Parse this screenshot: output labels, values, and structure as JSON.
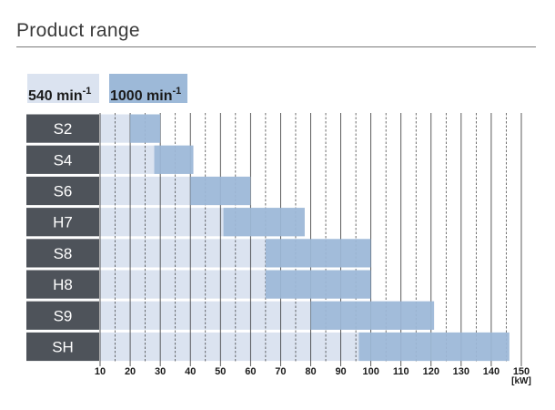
{
  "title": "Product range",
  "colors": {
    "label_bg": "#4e535a",
    "bar_540": "#dbe3f0",
    "bar_1000": "#9db9d8",
    "grid": "#333333"
  },
  "legend": [
    {
      "label": "540 min",
      "sup": "-1",
      "color": "#dbe3f0"
    },
    {
      "label": "1000 min",
      "sup": "-1",
      "color": "#9db9d8"
    }
  ],
  "chart_data": {
    "type": "bar",
    "orientation": "horizontal",
    "title": "Product range",
    "xlabel": "[kW]",
    "xlim": [
      10,
      150
    ],
    "x_ticks": [
      "10",
      "20",
      "30",
      "40",
      "50",
      "60",
      "70",
      "80",
      "90",
      "100",
      "110",
      "120",
      "130",
      "140",
      "150"
    ],
    "categories": [
      "S2",
      "S4",
      "S6",
      "H7",
      "S8",
      "H8",
      "S9",
      "SH"
    ],
    "series": [
      {
        "name": "540 min-1",
        "ranges": [
          [
            10,
            30
          ],
          [
            10,
            41
          ],
          [
            10,
            60
          ],
          [
            10,
            78
          ],
          [
            10,
            100
          ],
          [
            10,
            100
          ],
          [
            10,
            121
          ],
          [
            10,
            146
          ]
        ]
      },
      {
        "name": "1000 min-1",
        "ranges": [
          [
            20,
            30
          ],
          [
            28,
            41
          ],
          [
            40,
            60
          ],
          [
            51,
            78
          ],
          [
            65,
            100
          ],
          [
            65,
            100
          ],
          [
            80,
            121
          ],
          [
            96,
            146
          ]
        ]
      }
    ],
    "grid": true,
    "grid_style": "solid at multiples of 10, dashed at 5s"
  }
}
